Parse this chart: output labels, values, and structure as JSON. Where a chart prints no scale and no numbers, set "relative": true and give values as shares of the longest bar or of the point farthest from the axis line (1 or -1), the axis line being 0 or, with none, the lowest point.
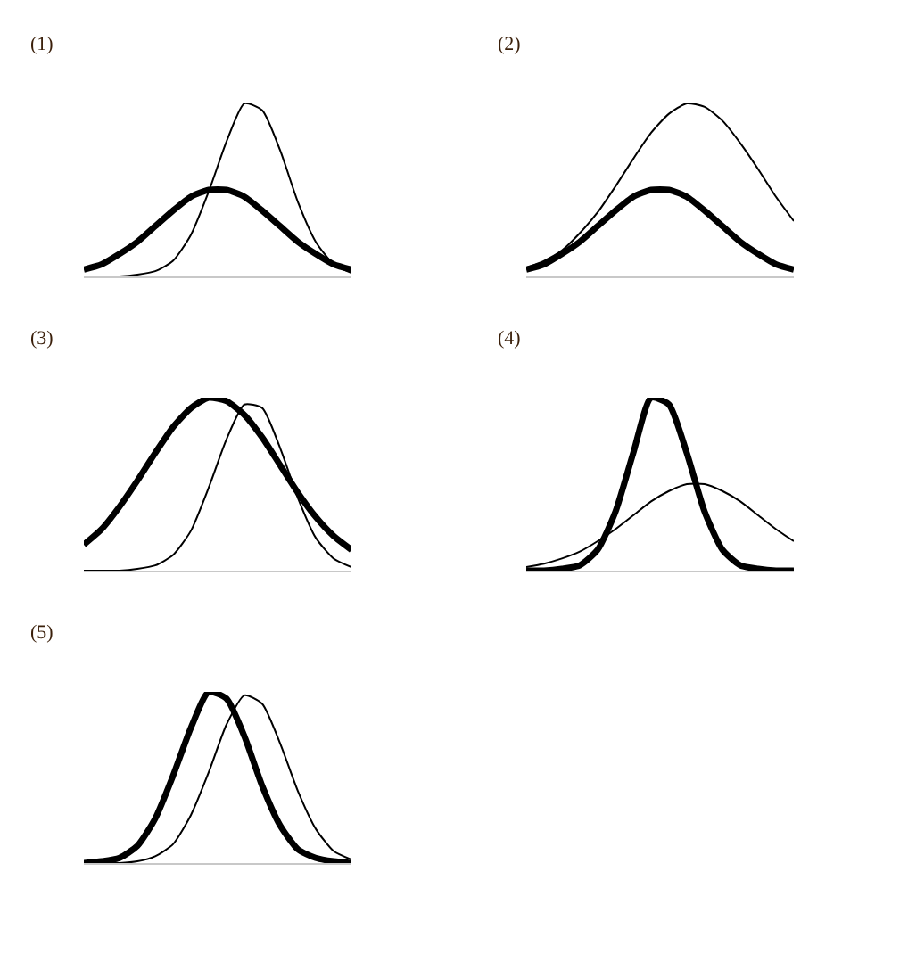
{
  "chart_data": [
    {
      "type": "line",
      "title": "(1)",
      "relative": true,
      "categories": [
        null,
        null,
        null,
        null,
        null,
        null,
        null,
        null,
        null,
        null,
        null,
        null,
        null,
        null,
        null,
        null
      ],
      "series": [
        {
          "color": "#000000",
          "values": [
            0.04,
            0.07,
            0.13,
            0.2,
            0.29,
            0.38,
            0.46,
            0.5,
            0.5,
            0.46,
            0.38,
            0.29,
            0.2,
            0.13,
            0.07,
            0.04
          ]
        },
        {
          "color": "#000000",
          "values": [
            0,
            0,
            0,
            0.01,
            0.03,
            0.09,
            0.24,
            0.49,
            0.78,
            1.0,
            0.96,
            0.73,
            0.43,
            0.2,
            0.07,
            0.02
          ]
        }
      ]
    },
    {
      "type": "line",
      "title": "(2)",
      "relative": true,
      "categories": [
        null,
        null,
        null,
        null,
        null,
        null,
        null,
        null,
        null,
        null,
        null,
        null,
        null,
        null,
        null,
        null
      ],
      "series": [
        {
          "color": "#000000",
          "values": [
            0.04,
            0.07,
            0.13,
            0.2,
            0.29,
            0.38,
            0.46,
            0.5,
            0.5,
            0.46,
            0.38,
            0.29,
            0.2,
            0.13,
            0.07,
            0.04
          ]
        },
        {
          "color": "#000000",
          "values": [
            0.05,
            0.09,
            0.15,
            0.25,
            0.37,
            0.52,
            0.68,
            0.83,
            0.94,
            1.0,
            0.98,
            0.9,
            0.77,
            0.62,
            0.46,
            0.32
          ]
        }
      ]
    },
    {
      "type": "line",
      "title": "(3)",
      "relative": true,
      "categories": [
        null,
        null,
        null,
        null,
        null,
        null,
        null,
        null,
        null,
        null,
        null,
        null,
        null,
        null,
        null,
        null
      ],
      "series": [
        {
          "color": "#000000",
          "values": [
            0.15,
            0.24,
            0.37,
            0.52,
            0.68,
            0.83,
            0.94,
            1.0,
            0.98,
            0.9,
            0.77,
            0.61,
            0.45,
            0.31,
            0.2,
            0.12
          ]
        },
        {
          "color": "#000000",
          "values": [
            0,
            0,
            0,
            0.01,
            0.03,
            0.09,
            0.23,
            0.48,
            0.76,
            0.96,
            0.94,
            0.71,
            0.42,
            0.19,
            0.07,
            0.02
          ]
        }
      ]
    },
    {
      "type": "line",
      "title": "(4)",
      "relative": true,
      "categories": [
        null,
        null,
        null,
        null,
        null,
        null,
        null,
        null,
        null,
        null,
        null,
        null,
        null,
        null,
        null,
        null
      ],
      "series": [
        {
          "color": "#000000",
          "values": [
            0,
            0,
            0.01,
            0.03,
            0.12,
            0.34,
            0.68,
            1.0,
            0.96,
            0.68,
            0.34,
            0.12,
            0.03,
            0.01,
            0,
            0
          ]
        },
        {
          "color": "#000000",
          "values": [
            0.02,
            0.04,
            0.07,
            0.11,
            0.17,
            0.24,
            0.32,
            0.4,
            0.46,
            0.5,
            0.5,
            0.46,
            0.4,
            0.32,
            0.24,
            0.17
          ]
        }
      ]
    },
    {
      "type": "line",
      "title": "(5)",
      "relative": true,
      "categories": [
        null,
        null,
        null,
        null,
        null,
        null,
        null,
        null,
        null,
        null,
        null,
        null,
        null,
        null,
        null,
        null
      ],
      "series": [
        {
          "color": "#000000",
          "values": [
            0,
            0.01,
            0.03,
            0.1,
            0.26,
            0.51,
            0.79,
            1.0,
            0.96,
            0.74,
            0.45,
            0.22,
            0.08,
            0.03,
            0.01,
            0
          ]
        },
        {
          "color": "#000000",
          "values": [
            0,
            0,
            0,
            0.01,
            0.04,
            0.11,
            0.28,
            0.53,
            0.81,
            0.98,
            0.93,
            0.7,
            0.42,
            0.2,
            0.07,
            0.02
          ]
        }
      ]
    }
  ]
}
